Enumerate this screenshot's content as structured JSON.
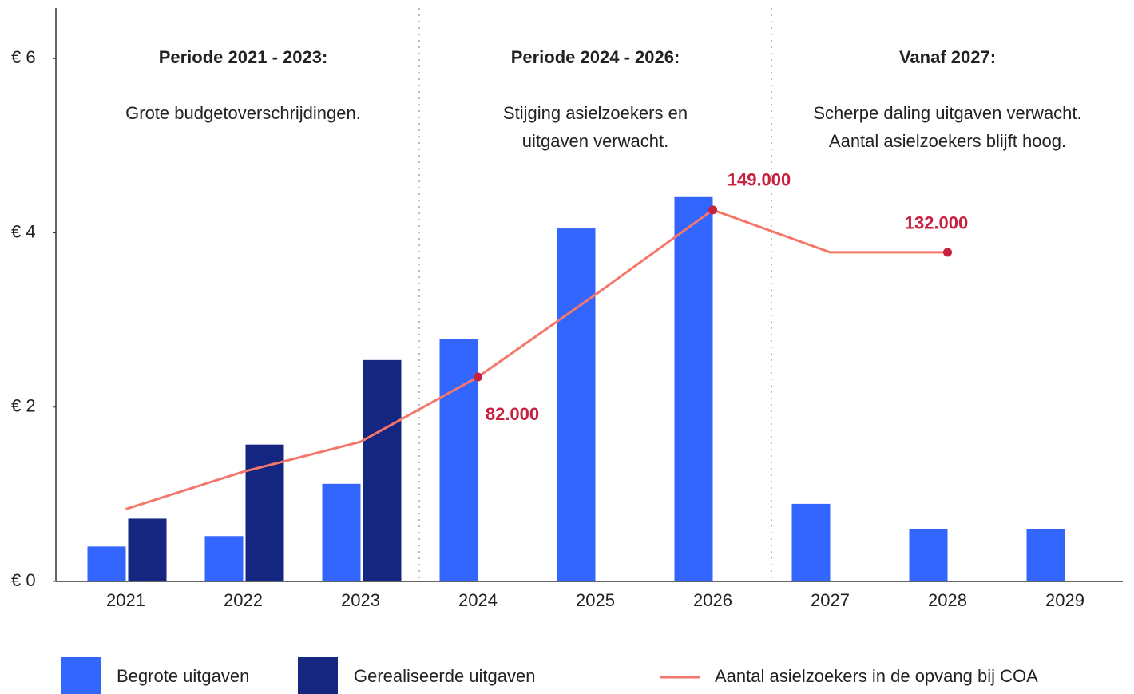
{
  "chart_data": {
    "type": "bar",
    "categories": [
      "2021",
      "2022",
      "2023",
      "2024",
      "2025",
      "2026",
      "2027",
      "2028",
      "2029"
    ],
    "series": [
      {
        "name": "Begrote uitgaven",
        "color": "#3366ff",
        "values": [
          0.4,
          0.52,
          1.12,
          2.78,
          4.05,
          4.41,
          0.89,
          0.6,
          0.6
        ]
      },
      {
        "name": "Gerealiseerde uitgaven",
        "color": "#14267f",
        "values": [
          0.72,
          1.57,
          2.54,
          null,
          null,
          null,
          null,
          null,
          null
        ]
      },
      {
        "name": "Aantal asielzoekers in de opvang bij COA",
        "type": "line",
        "axis": "y2",
        "color": "#f4776a",
        "marker_color": "#c8203f",
        "values": [
          29000,
          44000,
          56000,
          82000,
          115000,
          149000,
          132000,
          132000,
          null
        ],
        "value_labels": [
          null,
          null,
          null,
          "82.000",
          null,
          "149.000",
          null,
          "132.000",
          null
        ]
      }
    ],
    "ylim": [
      0,
      6.58
    ],
    "yticks": [
      {
        "value": 0,
        "label": "€ 0"
      },
      {
        "value": 2,
        "label": "€ 2"
      },
      {
        "value": 4,
        "label": "€ 4"
      },
      {
        "value": 6,
        "label": "€ 6"
      }
    ],
    "y2lim": [
      0,
      230000
    ],
    "grid": false,
    "legend": "bottom",
    "annotations": [
      {
        "title": "Periode 2021 - 2023:",
        "text": [
          "Grote budgetoverschrijdingen."
        ]
      },
      {
        "title": "Periode 2024 - 2026:",
        "text": [
          "Stijging asielzoekers en",
          "uitgaven verwacht."
        ]
      },
      {
        "title": "Vanaf 2027:",
        "text": [
          "Scherpe daling uitgaven verwacht.",
          "Aantal asielzoekers blijft hoog."
        ]
      }
    ]
  }
}
